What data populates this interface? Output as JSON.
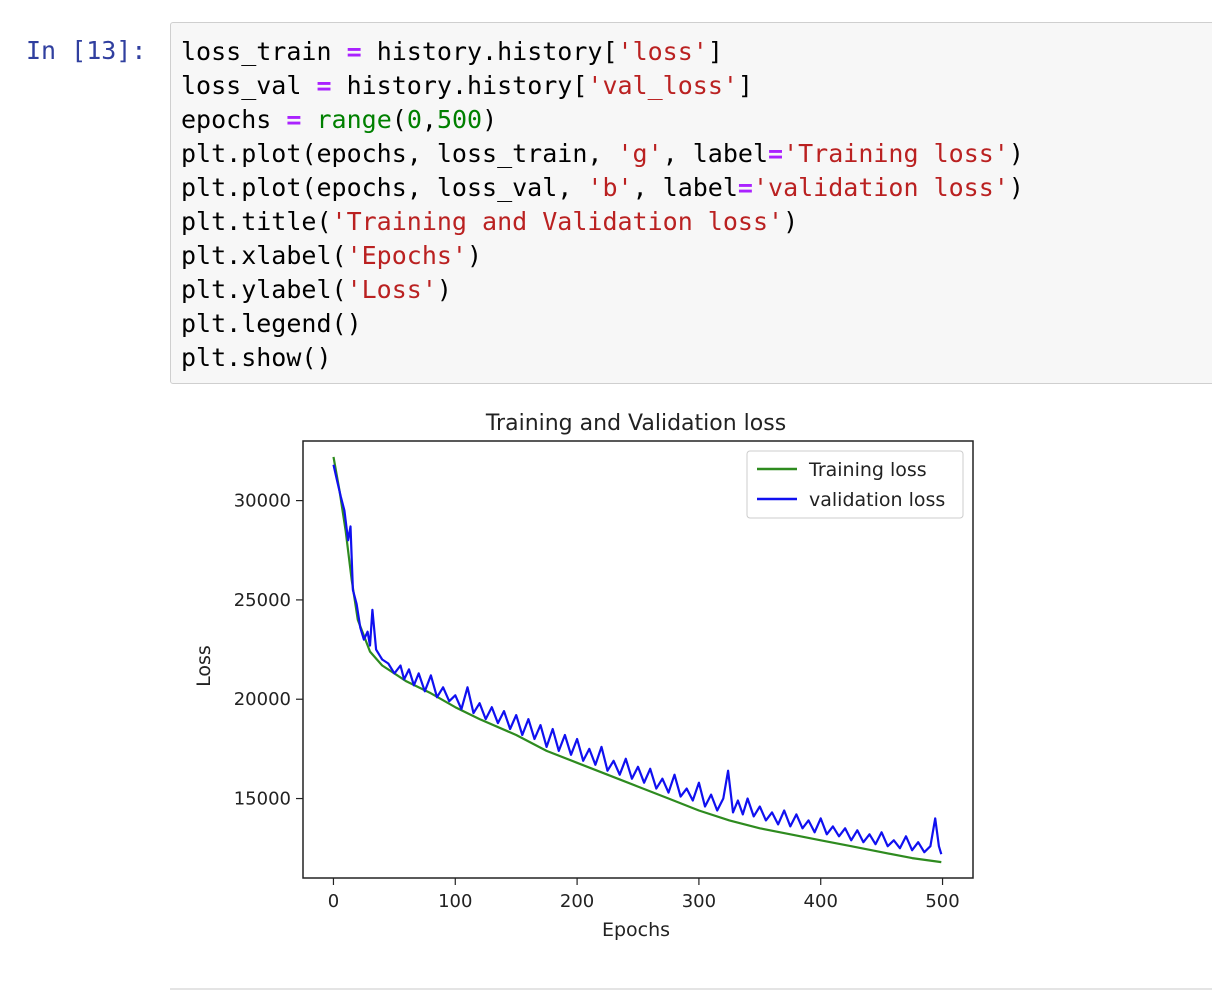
{
  "cell": {
    "prompt": "In [13]:",
    "code_lines": [
      [
        {
          "t": "loss_train "
        },
        {
          "t": "=",
          "c": "op"
        },
        {
          "t": " history.history["
        },
        {
          "t": "'loss'",
          "c": "str"
        },
        {
          "t": "]"
        }
      ],
      [
        {
          "t": "loss_val "
        },
        {
          "t": "=",
          "c": "op"
        },
        {
          "t": " history.history["
        },
        {
          "t": "'val_loss'",
          "c": "str"
        },
        {
          "t": "]"
        }
      ],
      [
        {
          "t": "epochs "
        },
        {
          "t": "=",
          "c": "op"
        },
        {
          "t": " "
        },
        {
          "t": "range",
          "c": "bi"
        },
        {
          "t": "("
        },
        {
          "t": "0",
          "c": "num"
        },
        {
          "t": ","
        },
        {
          "t": "500",
          "c": "num"
        },
        {
          "t": ")"
        }
      ],
      [
        {
          "t": "plt.plot(epochs, loss_train, "
        },
        {
          "t": "'g'",
          "c": "str"
        },
        {
          "t": ", label"
        },
        {
          "t": "=",
          "c": "op"
        },
        {
          "t": "'Training loss'",
          "c": "str"
        },
        {
          "t": ")"
        }
      ],
      [
        {
          "t": "plt.plot(epochs, loss_val, "
        },
        {
          "t": "'b'",
          "c": "str"
        },
        {
          "t": ", label"
        },
        {
          "t": "=",
          "c": "op"
        },
        {
          "t": "'validation loss'",
          "c": "str"
        },
        {
          "t": ")"
        }
      ],
      [
        {
          "t": "plt.title("
        },
        {
          "t": "'Training and Validation loss'",
          "c": "str"
        },
        {
          "t": ")"
        }
      ],
      [
        {
          "t": "plt.xlabel("
        },
        {
          "t": "'Epochs'",
          "c": "str"
        },
        {
          "t": ")"
        }
      ],
      [
        {
          "t": "plt.ylabel("
        },
        {
          "t": "'Loss'",
          "c": "str"
        },
        {
          "t": ")"
        }
      ],
      [
        {
          "t": "plt.legend()"
        }
      ],
      [
        {
          "t": "plt.show()"
        }
      ]
    ]
  },
  "colors": {
    "prompt": "#303f9f",
    "operator": "#aa22ff",
    "string": "#ba2121",
    "number": "#008000",
    "training": "#2e8b1f",
    "validation": "#1010f0"
  },
  "chart_data": {
    "type": "line",
    "title": "Training and Validation loss",
    "xlabel": "Epochs",
    "ylabel": "Loss",
    "xlim": [
      -25,
      525
    ],
    "ylim": [
      11000,
      33000
    ],
    "xticks": [
      0,
      100,
      200,
      300,
      400,
      500
    ],
    "yticks": [
      15000,
      20000,
      25000,
      30000
    ],
    "grid": false,
    "legend_position": "upper-right",
    "series": [
      {
        "name": "Training loss",
        "color": "#2e8b1f",
        "x": [
          0,
          5,
          10,
          15,
          20,
          30,
          40,
          50,
          60,
          80,
          100,
          120,
          150,
          175,
          200,
          225,
          250,
          275,
          300,
          325,
          350,
          375,
          400,
          425,
          450,
          475,
          499
        ],
        "y": [
          32200,
          30500,
          28500,
          26000,
          24000,
          22400,
          21700,
          21300,
          20900,
          20300,
          19600,
          19000,
          18200,
          17400,
          16800,
          16200,
          15600,
          15000,
          14400,
          13900,
          13500,
          13200,
          12900,
          12600,
          12300,
          12000,
          11800
        ]
      },
      {
        "name": "validation loss",
        "color": "#1010f0",
        "x": [
          0,
          3,
          6,
          9,
          12,
          14,
          16,
          19,
          22,
          25,
          28,
          30,
          32,
          35,
          40,
          45,
          50,
          55,
          58,
          62,
          66,
          70,
          75,
          80,
          85,
          90,
          95,
          100,
          105,
          110,
          115,
          120,
          125,
          130,
          135,
          140,
          145,
          150,
          155,
          160,
          165,
          170,
          175,
          180,
          185,
          190,
          195,
          200,
          205,
          210,
          215,
          220,
          225,
          230,
          235,
          240,
          245,
          250,
          255,
          260,
          265,
          270,
          275,
          280,
          285,
          290,
          295,
          300,
          305,
          310,
          315,
          320,
          324,
          328,
          332,
          336,
          340,
          345,
          350,
          355,
          360,
          365,
          370,
          375,
          380,
          385,
          390,
          395,
          400,
          405,
          410,
          415,
          420,
          425,
          430,
          435,
          440,
          445,
          450,
          455,
          460,
          465,
          470,
          475,
          480,
          485,
          490,
          494,
          497,
          499
        ],
        "y": [
          31800,
          31000,
          30200,
          29500,
          28000,
          28700,
          25500,
          24800,
          23600,
          23000,
          23400,
          22700,
          24500,
          22500,
          22000,
          21800,
          21300,
          21700,
          21000,
          21500,
          20700,
          21300,
          20400,
          21200,
          20100,
          20600,
          19900,
          20200,
          19500,
          20600,
          19300,
          19800,
          19000,
          19600,
          18800,
          19400,
          18500,
          19200,
          18200,
          19000,
          18000,
          18700,
          17600,
          18500,
          17400,
          18200,
          17200,
          18000,
          16900,
          17500,
          16700,
          17600,
          16400,
          16900,
          16200,
          17000,
          16000,
          16600,
          15800,
          16500,
          15500,
          16000,
          15300,
          16200,
          15100,
          15500,
          14900,
          15800,
          14600,
          15200,
          14400,
          15000,
          16400,
          14300,
          14900,
          14200,
          15000,
          14100,
          14600,
          13900,
          14300,
          13700,
          14400,
          13600,
          14200,
          13500,
          13900,
          13300,
          14000,
          13200,
          13600,
          13100,
          13500,
          12900,
          13400,
          12800,
          13200,
          12700,
          13300,
          12600,
          12900,
          12500,
          13100,
          12400,
          12800,
          12300,
          12600,
          14000,
          12600,
          12200
        ]
      }
    ]
  }
}
